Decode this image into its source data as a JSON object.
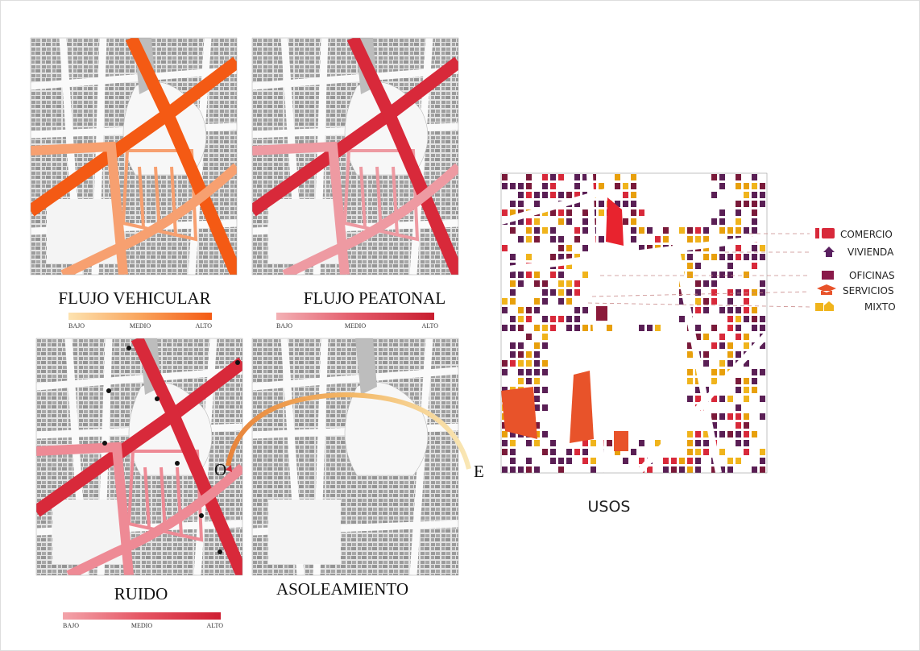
{
  "panels": [
    {
      "title": "FLUJO VEHICULAR",
      "scale": [
        "BAJO",
        "MEDIO",
        "ALTO"
      ]
    },
    {
      "title": "FLUJO PEATONAL",
      "scale": [
        "BAJO",
        "MEDIO",
        "ALTO"
      ]
    },
    {
      "title": "RUIDO",
      "scale": [
        "BAJO",
        "MEDIO",
        "ALTO"
      ]
    }
  ],
  "asoleamiento": {
    "title": "ASOLEAMIENTO",
    "west": "O",
    "east": "E"
  },
  "usos": {
    "title": "USOS",
    "legend": [
      "COMERCIO",
      "VIVIENDA",
      "OFICINAS",
      "SERVICIOS",
      "MIXTO"
    ]
  }
}
